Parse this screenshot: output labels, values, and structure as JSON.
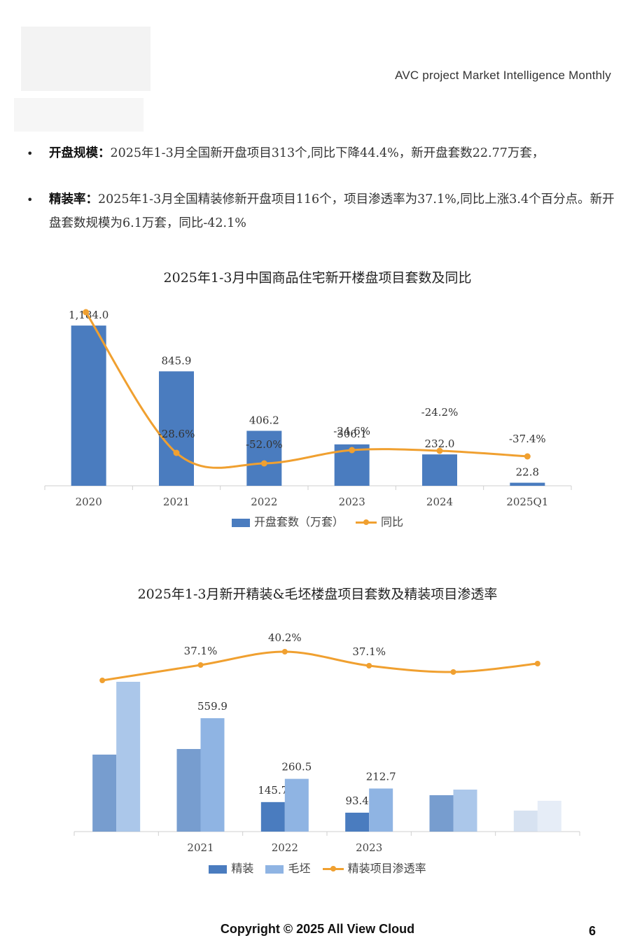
{
  "header": {
    "title": "AVC  project Market Intelligence Monthly"
  },
  "paragraphs": [
    {
      "label": "开盘规模：",
      "text": "2025年1-3月全国新开盘项目313个,同比下降44.4%，新开盘套数22.77万套，"
    },
    {
      "label": "精装率：",
      "text": "2025年1-3月全国精装修新开盘项目116个，项目渗透率为37.1%,同比上涨3.4个百分点。新开盘套数规模为6.1万套，同比-42.1%"
    }
  ],
  "bullet_glyph": "•",
  "colors": {
    "bar_dark": "#4a7cbf",
    "bar_light": "#8fb4e3",
    "line": "#f0a030"
  },
  "chart1": {
    "title": "2025年1-3月中国商品住宅新开楼盘项目套数及同比",
    "legend": {
      "bar": "开盘套数（万套）",
      "line": "同比"
    }
  },
  "chart2": {
    "title": "2025年1-3月新开精装&毛坯楼盘项目套数及精装项目渗透率",
    "legend": {
      "bar1": "精装",
      "bar2": "毛坯",
      "line": "精装项目渗透率"
    }
  },
  "chart_data": [
    {
      "type": "bar",
      "title": "2025年1-3月中国商品住宅新开楼盘项目套数及同比",
      "categories": [
        "2020",
        "2021",
        "2022",
        "2023",
        "2024",
        "2025Q1"
      ],
      "series": [
        {
          "name": "开盘套数（万套）",
          "type": "bar",
          "values": [
            1184.0,
            845.9,
            406.2,
            306.1,
            232.0,
            22.8
          ],
          "labels": [
            "1,184.0",
            "845.9",
            "406.2",
            "306.1",
            "232.0",
            "22.8"
          ]
        },
        {
          "name": "同比",
          "type": "line",
          "values": [
            null,
            -28.6,
            -52.0,
            -24.6,
            -24.2,
            -37.4
          ],
          "labels": [
            "",
            "-28.6%",
            "-52.0%",
            "-24.6%",
            "-24.2%",
            "-37.4%"
          ]
        }
      ],
      "ylim": [
        0,
        1200
      ],
      "grid": false,
      "legend": "bottom"
    },
    {
      "type": "bar",
      "title": "2025年1-3月新开精装&毛坯楼盘项目套数及精装项目渗透率",
      "categories": [
        "",
        "2021",
        "2022",
        "2023",
        "",
        ""
      ],
      "series": [
        {
          "name": "精装",
          "type": "bar",
          "values": [
            null,
            null,
            145.7,
            93.4,
            null,
            null
          ],
          "labels": [
            "",
            "",
            "145.7",
            "93.4",
            "",
            ""
          ]
        },
        {
          "name": "毛坯",
          "type": "bar",
          "values": [
            null,
            559.9,
            260.5,
            212.7,
            null,
            null
          ],
          "labels": [
            "",
            "559.9",
            "260.5",
            "212.7",
            "",
            ""
          ]
        },
        {
          "name": "精装项目渗透率",
          "type": "line",
          "values": [
            null,
            37.1,
            40.2,
            37.1,
            null,
            null
          ],
          "labels": [
            "",
            "37.1%",
            "40.2%",
            "37.1%",
            "",
            ""
          ]
        }
      ],
      "grid": false,
      "legend": "bottom"
    }
  ],
  "footer": {
    "copyright": "Copyright © 2025  All View Cloud",
    "page_number": "6"
  }
}
